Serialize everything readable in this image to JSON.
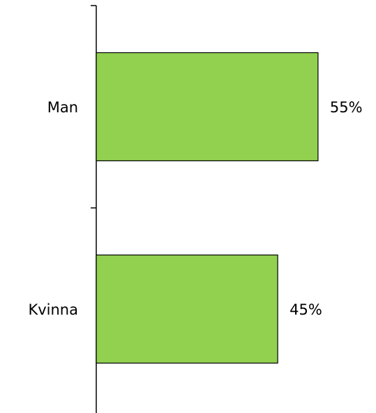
{
  "chart_data": {
    "type": "bar",
    "orientation": "horizontal",
    "categories": [
      "Man",
      "Kvinna"
    ],
    "values": [
      55,
      45
    ],
    "value_labels": [
      "55%",
      "45%"
    ],
    "color": "#92d050"
  }
}
